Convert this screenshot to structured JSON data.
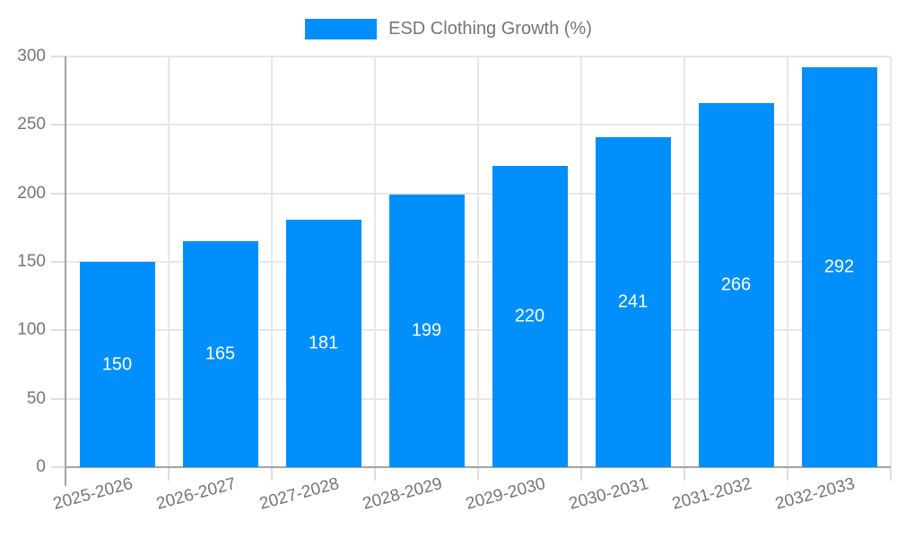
{
  "chart_data": {
    "type": "bar",
    "title": "ESD Clothing Growth (%)",
    "categories": [
      "2025-2026",
      "2026-2027",
      "2027-2028",
      "2028-2029",
      "2029-2030",
      "2030-2031",
      "2031-2032",
      "2032-2033"
    ],
    "values": [
      150,
      165,
      181,
      199,
      220,
      241,
      266,
      292
    ],
    "series": [
      {
        "name": "ESD Clothing Growth (%)",
        "values": [
          150,
          165,
          181,
          199,
          220,
          241,
          266,
          292
        ]
      }
    ],
    "xlabel": "",
    "ylabel": "",
    "ylim": [
      0,
      300
    ],
    "yticks": [
      0,
      50,
      100,
      150,
      200,
      250,
      300
    ],
    "grid": "on",
    "legend_position": "top",
    "bar_labels": "inside-center"
  },
  "legend": {
    "label": "ESD Clothing Growth (%)",
    "swatch": "legend-color-swatch"
  },
  "colors": {
    "bar": "#008FFB",
    "grid": "#e7e7e7",
    "tick": "#dedede",
    "axis": "#a3a3a3",
    "text": "#757575",
    "value_text": "#ffffff",
    "background": "#ffffff"
  }
}
